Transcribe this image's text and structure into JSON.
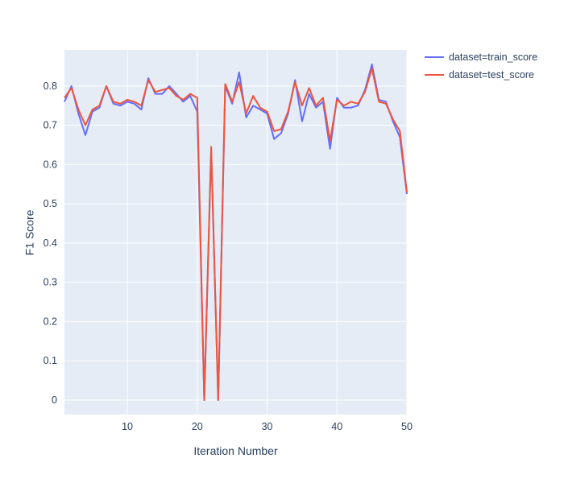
{
  "chart_data": {
    "type": "line",
    "title": "",
    "xlabel": "Iteration Number",
    "ylabel": "F1 Score",
    "x": [
      1,
      2,
      3,
      4,
      5,
      6,
      7,
      8,
      9,
      10,
      11,
      12,
      13,
      14,
      15,
      16,
      17,
      18,
      19,
      20,
      21,
      22,
      23,
      24,
      25,
      26,
      27,
      28,
      29,
      30,
      31,
      32,
      33,
      34,
      35,
      36,
      37,
      38,
      39,
      40,
      41,
      42,
      43,
      44,
      45,
      46,
      47,
      48,
      49,
      50
    ],
    "series": [
      {
        "name": "dataset=train_score",
        "color": "#636EFA",
        "values": [
          0.76,
          0.8,
          0.73,
          0.675,
          0.735,
          0.745,
          0.8,
          0.755,
          0.75,
          0.76,
          0.755,
          0.74,
          0.82,
          0.78,
          0.78,
          0.8,
          0.78,
          0.76,
          0.775,
          0.735,
          0.0,
          0.64,
          0.0,
          0.8,
          0.755,
          0.835,
          0.72,
          0.75,
          0.74,
          0.73,
          0.665,
          0.68,
          0.73,
          0.815,
          0.71,
          0.78,
          0.745,
          0.76,
          0.64,
          0.77,
          0.745,
          0.745,
          0.75,
          0.79,
          0.855,
          0.765,
          0.76,
          0.71,
          0.67,
          0.525
        ]
      },
      {
        "name": "dataset=test_score",
        "color": "#EF553B",
        "values": [
          0.77,
          0.795,
          0.74,
          0.7,
          0.74,
          0.75,
          0.8,
          0.76,
          0.755,
          0.765,
          0.76,
          0.75,
          0.815,
          0.785,
          0.79,
          0.795,
          0.775,
          0.765,
          0.78,
          0.77,
          0.0,
          0.645,
          0.0,
          0.805,
          0.76,
          0.81,
          0.73,
          0.775,
          0.745,
          0.735,
          0.685,
          0.69,
          0.735,
          0.81,
          0.75,
          0.795,
          0.75,
          0.77,
          0.66,
          0.765,
          0.75,
          0.76,
          0.755,
          0.785,
          0.845,
          0.76,
          0.755,
          0.715,
          0.685,
          0.53
        ]
      }
    ],
    "xlim": [
      1,
      50
    ],
    "ylim": [
      -0.037,
      0.892
    ],
    "xticks": [
      10,
      20,
      30,
      40,
      50
    ],
    "yticks": [
      0,
      0.1,
      0.2,
      0.3,
      0.4,
      0.5,
      0.6,
      0.7,
      0.8
    ],
    "grid": true,
    "legend_position": "top-right",
    "colors": {
      "plot_bg": "#E5ECF6",
      "grid": "#FFFFFF",
      "text": "#2A3F5F"
    }
  }
}
